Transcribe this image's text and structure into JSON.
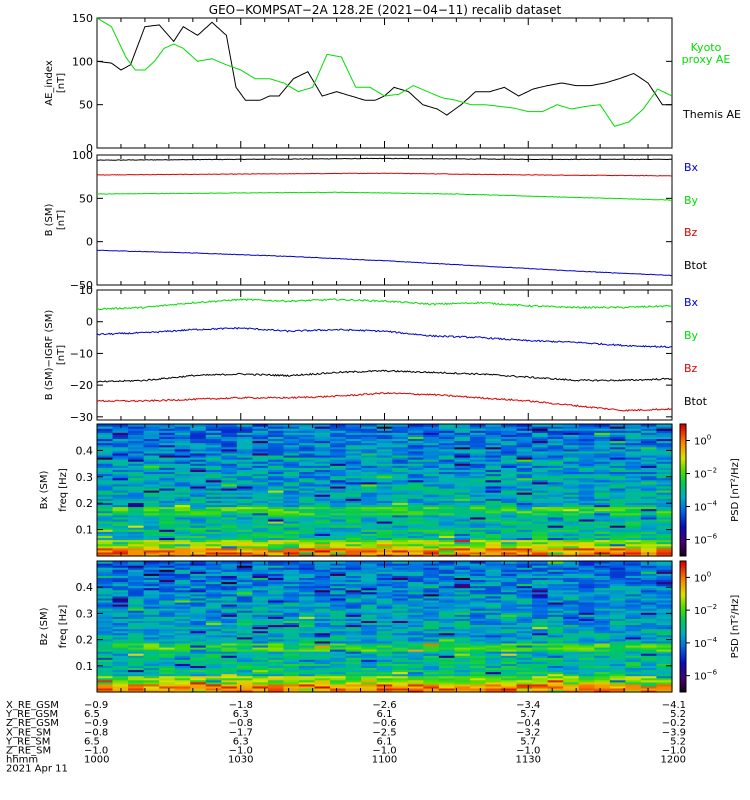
{
  "title": "GEO−KOMPSAT−2A 128.2E (2021−04−11) recalib dataset",
  "colors": {
    "black": "#000000",
    "green": "#00dd00",
    "red": "#dd0000",
    "blue": "#0000cc",
    "kyoto": "#00dd00"
  },
  "chart_data": [
    {
      "type": "line",
      "panel": "AE index",
      "ylabel": [
        "AE_index",
        "[nT]"
      ],
      "ylim": [
        0,
        150
      ],
      "yticks": [
        "0",
        "50",
        "100",
        "150"
      ],
      "x_range_minutes": [
        0,
        120
      ],
      "legend": [
        "Kyoto",
        "proxy AE",
        "Themis AE"
      ],
      "series": [
        {
          "name": "Themis AE",
          "color": "black",
          "x": [
            0,
            3,
            5,
            7,
            10,
            13,
            16,
            18,
            21,
            24,
            27,
            29,
            31,
            34,
            36,
            38,
            41,
            44,
            47,
            50,
            53,
            56,
            58,
            60,
            62,
            65,
            68,
            71,
            73,
            76,
            79,
            82,
            85,
            88,
            91,
            94,
            97,
            100,
            103,
            106,
            109,
            112,
            115,
            118,
            120
          ],
          "y": [
            100,
            98,
            90,
            96,
            140,
            142,
            123,
            140,
            130,
            145,
            130,
            70,
            55,
            55,
            60,
            60,
            80,
            88,
            60,
            65,
            60,
            55,
            55,
            60,
            70,
            65,
            50,
            45,
            38,
            50,
            65,
            65,
            70,
            60,
            68,
            72,
            75,
            72,
            72,
            75,
            80,
            86,
            75,
            50,
            50
          ]
        },
        {
          "name": "Kyoto proxy AE",
          "color": "green",
          "x": [
            0,
            3,
            6,
            8,
            10,
            12,
            14,
            16,
            18,
            21,
            24,
            27,
            30,
            33,
            36,
            39,
            42,
            45,
            48,
            51,
            54,
            57,
            60,
            63,
            66,
            69,
            72,
            75,
            78,
            81,
            84,
            87,
            90,
            93,
            96,
            99,
            102,
            105,
            108,
            111,
            114,
            117,
            120
          ],
          "y": [
            150,
            140,
            105,
            90,
            90,
            100,
            115,
            120,
            115,
            100,
            103,
            96,
            90,
            80,
            80,
            75,
            65,
            70,
            108,
            105,
            70,
            70,
            60,
            62,
            72,
            65,
            58,
            55,
            50,
            50,
            48,
            46,
            42,
            42,
            50,
            45,
            48,
            50,
            25,
            30,
            45,
            68,
            60
          ]
        }
      ]
    },
    {
      "type": "line",
      "panel": "B (SM)",
      "ylabel": [
        "B (SM)",
        "[nT]"
      ],
      "ylim": [
        -50,
        100
      ],
      "yticks": [
        "−50",
        "0",
        "50",
        "100"
      ],
      "legend": [
        "Bx",
        "By",
        "Bz",
        "Btot"
      ],
      "series": [
        {
          "name": "Btot",
          "color": "black",
          "x": [
            0,
            30,
            60,
            90,
            120
          ],
          "y": [
            94,
            95,
            96,
            95,
            95
          ]
        },
        {
          "name": "Bz",
          "color": "red",
          "x": [
            0,
            30,
            60,
            90,
            120
          ],
          "y": [
            77,
            78,
            79,
            77,
            76
          ]
        },
        {
          "name": "By",
          "color": "green",
          "x": [
            0,
            25,
            50,
            75,
            100,
            120
          ],
          "y": [
            55,
            56,
            57,
            55,
            51,
            48
          ]
        },
        {
          "name": "Bx",
          "color": "blue",
          "x": [
            0,
            20,
            40,
            60,
            80,
            100,
            120
          ],
          "y": [
            -10,
            -13,
            -17,
            -22,
            -28,
            -34,
            -39
          ]
        }
      ]
    },
    {
      "type": "line",
      "panel": "B (SM) − IGRF (SM)",
      "ylabel": [
        "B (SM)−IGRF (SM)",
        "[nT]"
      ],
      "ylim": [
        -31,
        10
      ],
      "yticks": [
        "−30",
        "−20",
        "−10",
        "0",
        "10"
      ],
      "legend": [
        "Bx",
        "By",
        "Bz",
        "Btot"
      ],
      "series": [
        {
          "name": "By",
          "color": "green",
          "x": [
            0,
            10,
            20,
            30,
            40,
            50,
            60,
            70,
            80,
            90,
            100,
            110,
            120
          ],
          "y": [
            4,
            4.5,
            6,
            7,
            6.5,
            7,
            6.5,
            5.5,
            6,
            5,
            4.5,
            4.5,
            5
          ]
        },
        {
          "name": "Bx",
          "color": "blue",
          "x": [
            0,
            10,
            20,
            30,
            40,
            50,
            60,
            70,
            80,
            90,
            100,
            110,
            120
          ],
          "y": [
            -4,
            -3.5,
            -2.5,
            -2,
            -3,
            -2.5,
            -3,
            -4.5,
            -5,
            -6,
            -6.5,
            -7.5,
            -8
          ]
        },
        {
          "name": "Btot",
          "color": "black",
          "x": [
            0,
            10,
            20,
            30,
            40,
            50,
            60,
            70,
            80,
            90,
            100,
            110,
            120
          ],
          "y": [
            -19,
            -18.5,
            -17,
            -16.5,
            -17,
            -16,
            -15.5,
            -16,
            -16.5,
            -17.5,
            -18.5,
            -18.5,
            -18
          ]
        },
        {
          "name": "Bz",
          "color": "red",
          "x": [
            0,
            10,
            20,
            30,
            40,
            50,
            60,
            70,
            80,
            90,
            100,
            110,
            120
          ],
          "y": [
            -25,
            -25,
            -24.5,
            -24,
            -24,
            -23.5,
            -22.5,
            -23,
            -24,
            -25,
            -26.5,
            -28,
            -27.5
          ]
        }
      ]
    },
    {
      "type": "heatmap",
      "panel": "Bx (SM) spectrogram",
      "ylabel": [
        "Bx (SM)",
        "freq [Hz]"
      ],
      "ylim": [
        0,
        0.5
      ],
      "yticks": [
        "0.1",
        "0.2",
        "0.3",
        "0.4"
      ],
      "colorbar_label": "PSD [nT²/Hz]",
      "colorbar_ticks": [
        "10",
        "10",
        "10",
        "10"
      ],
      "colorbar_exps": [
        "0",
        "−2",
        "−4",
        "−6"
      ],
      "colorbar_range_log10": [
        -7,
        1
      ]
    },
    {
      "type": "heatmap",
      "panel": "Bz (SM) spectrogram",
      "ylabel": [
        "Bz (SM)",
        "freq [Hz]"
      ],
      "ylim": [
        0,
        0.5
      ],
      "yticks": [
        "0.1",
        "0.2",
        "0.3",
        "0.4"
      ],
      "colorbar_label": "PSD [nT²/Hz]",
      "colorbar_ticks": [
        "10",
        "10",
        "10",
        "10"
      ],
      "colorbar_exps": [
        "0",
        "−2",
        "−4",
        "−6"
      ],
      "colorbar_range_log10": [
        -7,
        1
      ]
    }
  ],
  "legends": {
    "kyoto": [
      "Kyoto",
      "proxy AE"
    ],
    "themis": "Themis AE",
    "b_components": [
      "Bx",
      "By",
      "Bz",
      "Btot"
    ]
  },
  "ephemeris": {
    "row_labels": [
      "X_RE_GSM",
      "Y_RE_GSM",
      "Z_RE_GSM",
      "X_RE_SM",
      "Y_RE_SM",
      "Z_RE_SM",
      "hhmm",
      "2021 Apr 11"
    ],
    "columns": [
      [
        "−0.9",
        "6.5",
        "−0.9",
        "−0.8",
        "6.5",
        "−1.0",
        "1000"
      ],
      [
        "−1.8",
        "6.3",
        "−0.8",
        "−1.7",
        "6.3",
        "−1.0",
        "1030"
      ],
      [
        "−2.6",
        "6.1",
        "−0.6",
        "−2.5",
        "6.1",
        "−1.0",
        "1100"
      ],
      [
        "−3.4",
        "5.7",
        "−0.4",
        "−3.2",
        "5.7",
        "−1.0",
        "1130"
      ],
      [
        "−4.1",
        "5.2",
        "−0.2",
        "−3.9",
        "5.2",
        "−1.0",
        "1200"
      ]
    ]
  }
}
